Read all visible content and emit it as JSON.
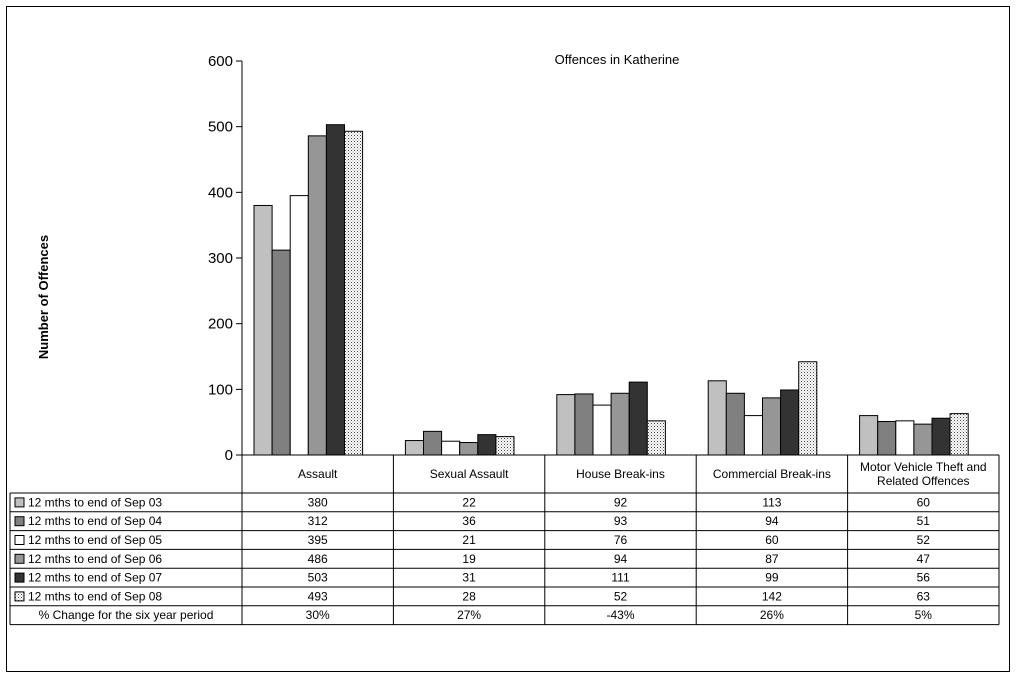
{
  "chart_data": {
    "type": "bar",
    "title": "Offences in Katherine",
    "xlabel": "",
    "ylabel": "Number of Offences",
    "ylim": [
      0,
      600
    ],
    "yticks": [
      0,
      100,
      200,
      300,
      400,
      500,
      600
    ],
    "grid": false,
    "categories": [
      [
        "Assault"
      ],
      [
        "Sexual Assault"
      ],
      [
        "House Break-ins"
      ],
      [
        "Commercial Break-ins"
      ],
      [
        "Motor Vehicle Theft and",
        "Related Offences"
      ]
    ],
    "series": [
      {
        "name": "12 mths to end of Sep 03",
        "values": [
          380,
          22,
          92,
          113,
          60
        ],
        "fill": "#c0c0c0",
        "pattern": "solid"
      },
      {
        "name": "12 mths to end of Sep 04",
        "values": [
          312,
          36,
          93,
          94,
          51
        ],
        "fill": "#808080",
        "pattern": "solid"
      },
      {
        "name": "12 mths to end of Sep 05",
        "values": [
          395,
          21,
          76,
          60,
          52
        ],
        "fill": "#ffffff",
        "pattern": "solid"
      },
      {
        "name": "12 mths to end of Sep 06",
        "values": [
          486,
          19,
          94,
          87,
          47
        ],
        "fill": "#969696",
        "pattern": "solid"
      },
      {
        "name": "12 mths to end of Sep 07",
        "values": [
          503,
          31,
          111,
          99,
          56
        ],
        "fill": "#333333",
        "pattern": "solid"
      },
      {
        "name": "12 mths to end of Sep 08",
        "values": [
          493,
          28,
          52,
          142,
          63
        ],
        "fill": "#ffffff",
        "pattern": "dotted"
      }
    ],
    "table": {
      "rows_from_series": true,
      "extra_row": {
        "label": "% Change for the six year period",
        "values": [
          "30%",
          "27%",
          "-43%",
          "26%",
          "5%"
        ]
      }
    }
  }
}
